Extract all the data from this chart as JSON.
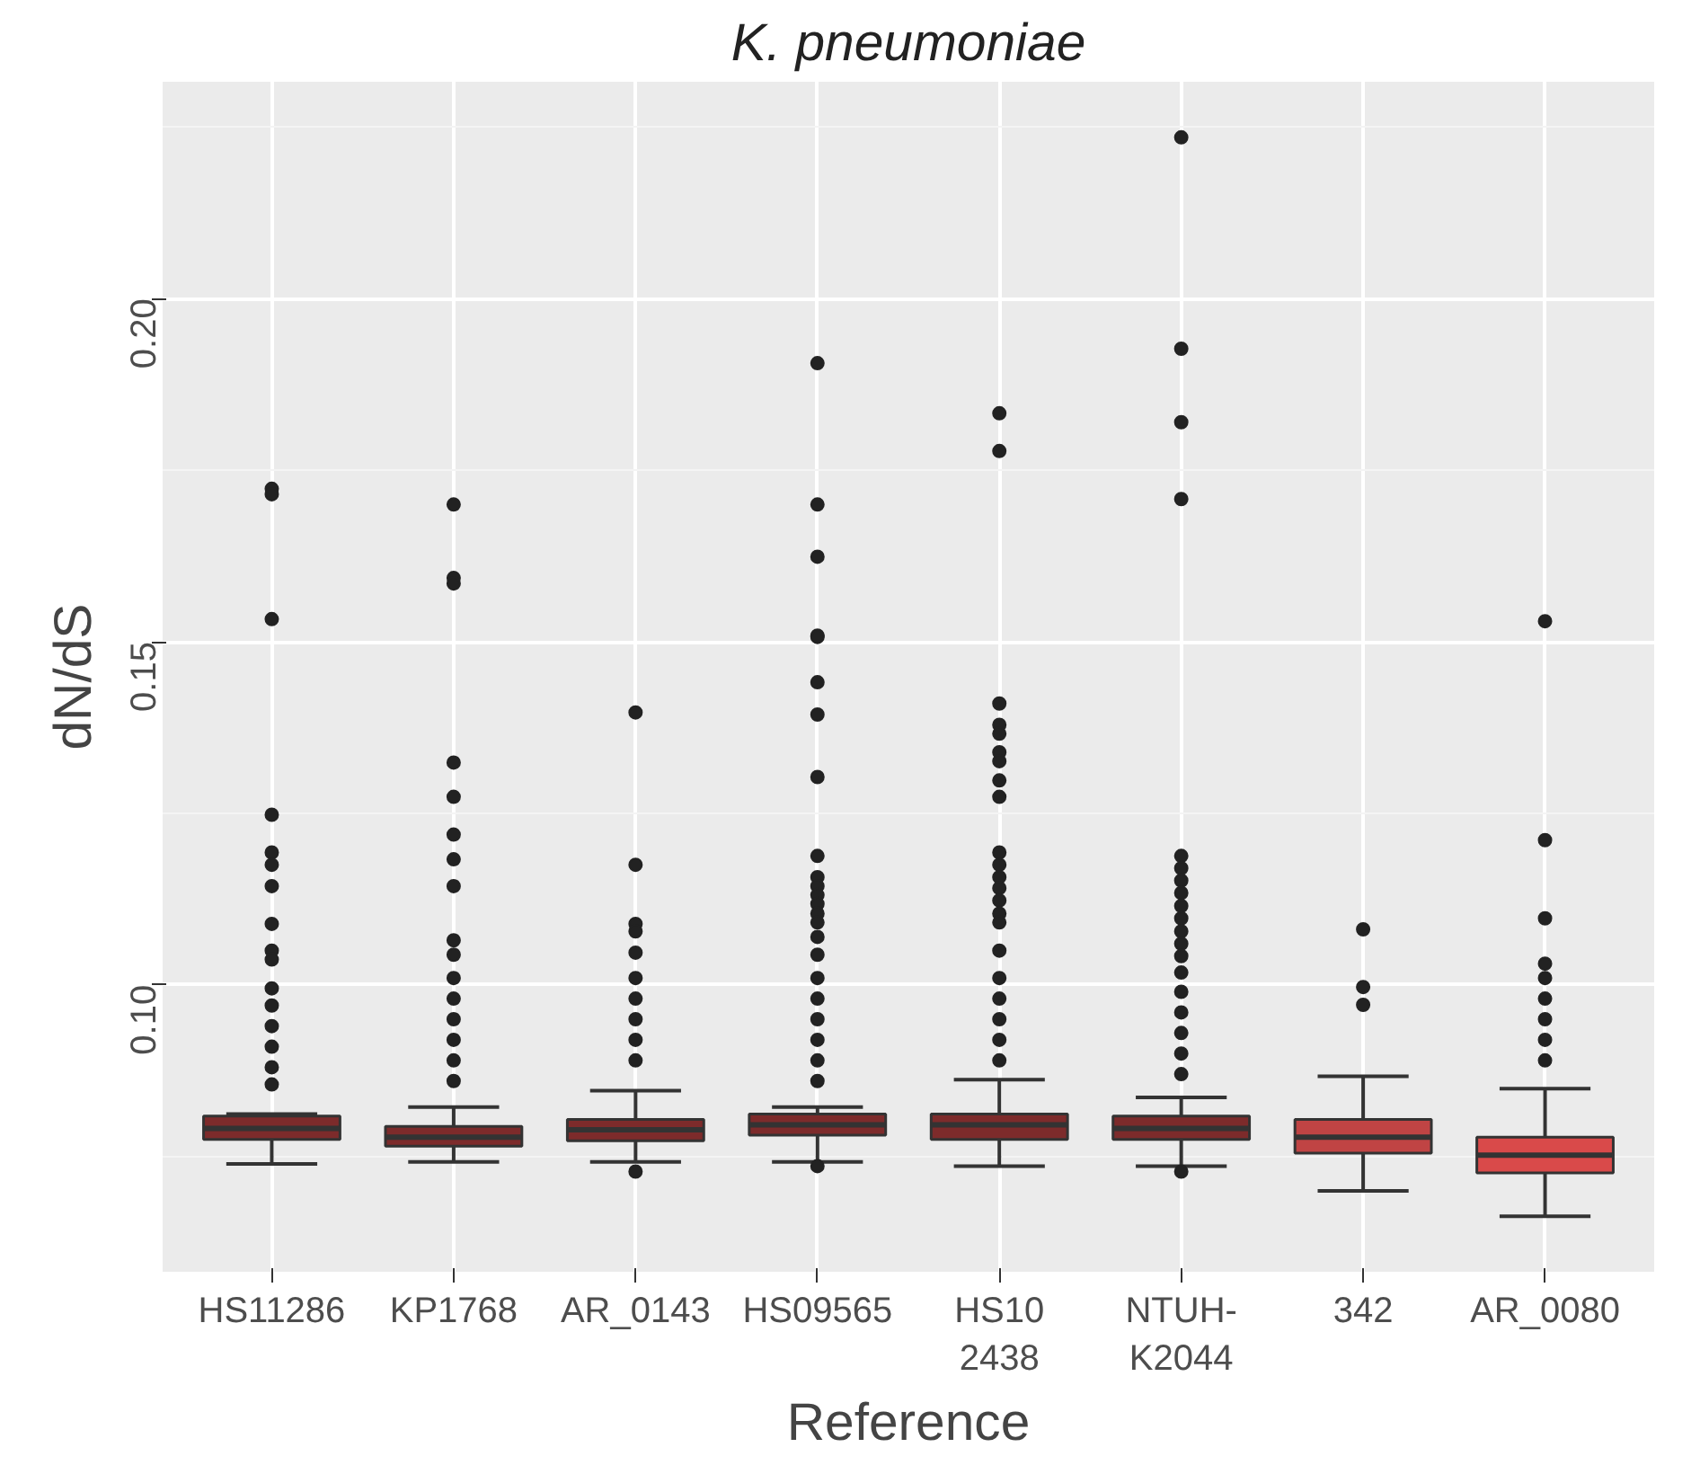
{
  "chart_data": {
    "type": "box",
    "title": "K. pneumoniae",
    "xlabel": "Reference",
    "ylabel": "dN/dS",
    "categories": [
      "HS11286",
      "KP1768",
      "AR_0143",
      "HS09565",
      "HS10\n2438",
      "NTUH-\nK2044",
      "342",
      "AR_0080"
    ],
    "colors": [
      "#7d2b2b",
      "#7d2b2b",
      "#7d2b2b",
      "#7d2b2b",
      "#7d2b2b",
      "#7d2b2b",
      "#c04444",
      "#d94a4a"
    ],
    "boxes": [
      {
        "low": 0.0739,
        "q1": 0.0775,
        "median": 0.0791,
        "q3": 0.0809,
        "high": 0.0812,
        "outliers": [
          0.1723,
          0.1715,
          0.1533,
          0.1248,
          0.1193,
          0.1175,
          0.1144,
          0.1089,
          0.105,
          0.1037,
          0.0995,
          0.097,
          0.094,
          0.091,
          0.088,
          0.0855
        ]
      },
      {
        "low": 0.0742,
        "q1": 0.0765,
        "median": 0.0778,
        "q3": 0.0794,
        "high": 0.0822,
        "outliers": [
          0.17,
          0.1593,
          0.1585,
          0.1324,
          0.1274,
          0.1219,
          0.1183,
          0.1144,
          0.1065,
          0.1044,
          0.101,
          0.098,
          0.095,
          0.092,
          0.089,
          0.086
        ]
      },
      {
        "low": 0.0742,
        "q1": 0.0773,
        "median": 0.0789,
        "q3": 0.0804,
        "high": 0.0846,
        "outliers": [
          0.1397,
          0.1175,
          0.1089,
          0.1078,
          0.1047,
          0.101,
          0.098,
          0.095,
          0.092,
          0.089,
          0.0728
        ]
      },
      {
        "low": 0.0742,
        "q1": 0.0781,
        "median": 0.0796,
        "q3": 0.0812,
        "high": 0.0822,
        "outliers": [
          0.1906,
          0.17,
          0.1624,
          0.1509,
          0.1507,
          0.1441,
          0.1394,
          0.1303,
          0.1188,
          0.1157,
          0.1144,
          0.1131,
          0.1118,
          0.1104,
          0.1091,
          0.107,
          0.1044,
          0.101,
          0.098,
          0.095,
          0.092,
          0.089,
          0.086,
          0.0736
        ]
      },
      {
        "low": 0.0736,
        "q1": 0.0775,
        "median": 0.0796,
        "q3": 0.0812,
        "high": 0.0862,
        "outliers": [
          0.1833,
          0.1778,
          0.141,
          0.1379,
          0.1366,
          0.1339,
          0.1326,
          0.1298,
          0.1274,
          0.1193,
          0.1175,
          0.1157,
          0.1141,
          0.1123,
          0.1104,
          0.1091,
          0.105,
          0.101,
          0.098,
          0.095,
          0.092,
          0.089
        ]
      },
      {
        "low": 0.0736,
        "q1": 0.0775,
        "median": 0.0791,
        "q3": 0.0809,
        "high": 0.0836,
        "outliers": [
          0.2235,
          0.1927,
          0.182,
          0.1708,
          0.1188,
          0.117,
          0.1152,
          0.1134,
          0.1115,
          0.1097,
          0.1078,
          0.106,
          0.1042,
          0.1018,
          0.099,
          0.096,
          0.093,
          0.09,
          0.087,
          0.0728
        ]
      },
      {
        "low": 0.07,
        "q1": 0.0755,
        "median": 0.0778,
        "q3": 0.0804,
        "high": 0.0867,
        "outliers": [
          0.1081,
          0.0997,
          0.0971
        ]
      },
      {
        "low": 0.0663,
        "q1": 0.0726,
        "median": 0.0752,
        "q3": 0.0778,
        "high": 0.0849,
        "outliers": [
          0.153,
          0.1211,
          0.1097,
          0.1031,
          0.101,
          0.098,
          0.095,
          0.092,
          0.089
        ]
      }
    ],
    "ylim": [
      0.0582,
      0.2316
    ],
    "yticks": [
      {
        "value": 0.1,
        "label": "0.10"
      },
      0.15,
      {
        "value": 0.2,
        "label": "0.20"
      }
    ],
    "grid": true
  }
}
